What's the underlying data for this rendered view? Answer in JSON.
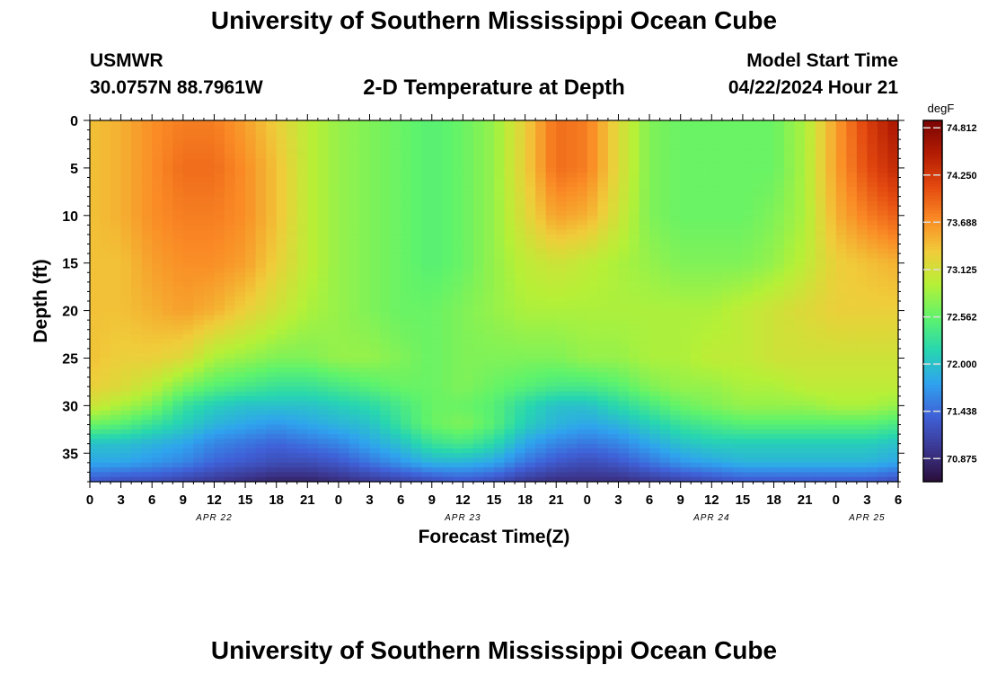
{
  "page": {
    "title": "University of Southern Mississippi Ocean Cube",
    "footer_title": "University of Southern Mississippi Ocean Cube",
    "station": "USMWR",
    "coordinates": "30.0757N  88.7961W",
    "plot_title": "2-D Temperature at Depth",
    "model_start_label": "Model Start Time",
    "model_start_value": "04/22/2024 Hour 21"
  },
  "chart_data": {
    "type": "heatmap",
    "title": "2-D Temperature at Depth",
    "xlabel": "Forecast Time(Z)",
    "ylabel": "Depth (ft)",
    "x_hours_since_0z_apr22": [
      0,
      3,
      6,
      9,
      12,
      15,
      18,
      21,
      24,
      27,
      30,
      33,
      36,
      39,
      42,
      45,
      48,
      51,
      54,
      57,
      60,
      63,
      66,
      69,
      72,
      75,
      78
    ],
    "x_tick_labels": [
      "0",
      "3",
      "6",
      "9",
      "12",
      "15",
      "18",
      "21",
      "0",
      "3",
      "6",
      "9",
      "12",
      "15",
      "18",
      "21",
      "0",
      "3",
      "6",
      "9",
      "12",
      "15",
      "18",
      "21",
      "0",
      "3",
      "6"
    ],
    "date_labels": [
      {
        "label": "APR 22",
        "hour": 12
      },
      {
        "label": "APR 23",
        "hour": 36
      },
      {
        "label": "APR 24",
        "hour": 60
      },
      {
        "label": "APR 25",
        "hour": 75
      }
    ],
    "y_ticks": [
      0,
      5,
      10,
      15,
      20,
      25,
      30,
      35
    ],
    "ylim": [
      0,
      38
    ],
    "xlim": [
      0,
      78
    ],
    "depth_axis_inverted": true,
    "depths": [
      0,
      5,
      10,
      15,
      20,
      25,
      28,
      30,
      32,
      34,
      36,
      38
    ],
    "values_degF": [
      [
        73.4,
        73.5,
        73.7,
        73.8,
        73.8,
        73.6,
        73.3,
        73.0,
        72.8,
        72.7,
        72.6,
        72.5,
        72.6,
        72.8,
        73.3,
        73.9,
        73.8,
        73.2,
        72.7,
        72.6,
        72.6,
        72.6,
        72.6,
        72.9,
        73.6,
        74.2,
        74.6
      ],
      [
        73.4,
        73.5,
        73.7,
        73.9,
        73.9,
        73.7,
        73.4,
        73.0,
        72.8,
        72.7,
        72.6,
        72.5,
        72.6,
        72.8,
        73.3,
        73.9,
        73.8,
        73.2,
        72.7,
        72.6,
        72.6,
        72.6,
        72.6,
        72.9,
        73.6,
        74.1,
        74.4
      ],
      [
        73.4,
        73.5,
        73.7,
        73.8,
        73.8,
        73.7,
        73.4,
        73.0,
        72.8,
        72.7,
        72.6,
        72.5,
        72.6,
        72.8,
        73.2,
        73.6,
        73.5,
        73.1,
        72.7,
        72.6,
        72.6,
        72.6,
        72.7,
        72.9,
        73.5,
        73.8,
        74.0
      ],
      [
        73.4,
        73.4,
        73.6,
        73.7,
        73.7,
        73.6,
        73.3,
        73.0,
        72.8,
        72.7,
        72.6,
        72.5,
        72.6,
        72.8,
        73.0,
        73.1,
        73.0,
        72.9,
        72.8,
        72.7,
        72.7,
        72.7,
        72.8,
        73.0,
        73.3,
        73.4,
        73.5
      ],
      [
        73.4,
        73.4,
        73.5,
        73.6,
        73.5,
        73.3,
        73.1,
        72.9,
        72.8,
        72.7,
        72.6,
        72.6,
        72.7,
        72.8,
        72.9,
        72.9,
        72.9,
        72.9,
        72.9,
        72.9,
        72.9,
        73.0,
        73.1,
        73.2,
        73.3,
        73.3,
        73.3
      ],
      [
        73.4,
        73.3,
        73.3,
        73.2,
        72.9,
        72.8,
        72.7,
        72.7,
        72.8,
        72.8,
        72.7,
        72.6,
        72.7,
        72.7,
        72.7,
        72.7,
        72.8,
        72.8,
        72.9,
        72.9,
        73.0,
        73.0,
        73.1,
        73.1,
        73.1,
        73.1,
        73.1
      ],
      [
        73.3,
        73.2,
        73.0,
        72.7,
        72.5,
        72.4,
        72.3,
        72.3,
        72.4,
        72.5,
        72.6,
        72.6,
        72.7,
        72.6,
        72.5,
        72.4,
        72.4,
        72.5,
        72.7,
        72.8,
        72.8,
        72.9,
        72.9,
        73.0,
        73.0,
        73.0,
        73.0
      ],
      [
        73.1,
        72.9,
        72.7,
        72.3,
        72.1,
        72.0,
        72.0,
        72.0,
        72.1,
        72.2,
        72.4,
        72.6,
        72.6,
        72.5,
        72.2,
        72.0,
        72.0,
        72.2,
        72.4,
        72.6,
        72.7,
        72.8,
        72.8,
        72.8,
        72.9,
        72.9,
        72.8
      ],
      [
        72.6,
        72.5,
        72.3,
        72.1,
        71.9,
        71.8,
        71.7,
        71.8,
        71.9,
        72.0,
        72.3,
        72.6,
        72.7,
        72.5,
        72.1,
        71.9,
        71.8,
        71.9,
        72.1,
        72.3,
        72.4,
        72.5,
        72.5,
        72.5,
        72.5,
        72.5,
        72.4
      ],
      [
        72.0,
        72.0,
        71.9,
        71.8,
        71.6,
        71.5,
        71.4,
        71.5,
        71.6,
        71.8,
        72.0,
        72.3,
        72.4,
        72.2,
        71.8,
        71.6,
        71.5,
        71.6,
        71.8,
        72.0,
        72.1,
        72.1,
        72.1,
        72.1,
        72.1,
        72.1,
        72.0
      ],
      [
        71.8,
        71.8,
        71.7,
        71.6,
        71.4,
        71.3,
        71.2,
        71.2,
        71.3,
        71.5,
        71.7,
        71.9,
        71.9,
        71.8,
        71.5,
        71.3,
        71.2,
        71.3,
        71.5,
        71.7,
        71.8,
        71.9,
        71.9,
        71.9,
        71.9,
        71.9,
        71.8
      ],
      [
        71.3,
        71.2,
        71.2,
        71.1,
        71.0,
        70.9,
        70.8,
        70.8,
        70.9,
        71.0,
        71.1,
        71.2,
        71.3,
        71.2,
        71.0,
        70.9,
        70.9,
        70.9,
        71.0,
        71.1,
        71.2,
        71.3,
        71.3,
        71.3,
        71.3,
        71.3,
        71.2
      ]
    ],
    "colorbar": {
      "label": "degF",
      "min": 70.6,
      "max": 74.9,
      "tick_values": [
        74.812,
        74.25,
        73.688,
        73.125,
        72.562,
        72.0,
        71.438,
        70.875
      ],
      "tick_labels": [
        "74.812",
        "74.250",
        "73.688",
        "73.125",
        "72.562",
        "72.000",
        "71.438",
        "70.875"
      ],
      "colormap": [
        "#2a0e3a",
        "#3c3790",
        "#3f61d8",
        "#2fa3ee",
        "#27d6b0",
        "#5ff36b",
        "#b6f037",
        "#f0cc3a",
        "#fa8a25",
        "#e3480f",
        "#b21c03",
        "#7a0403"
      ]
    }
  }
}
